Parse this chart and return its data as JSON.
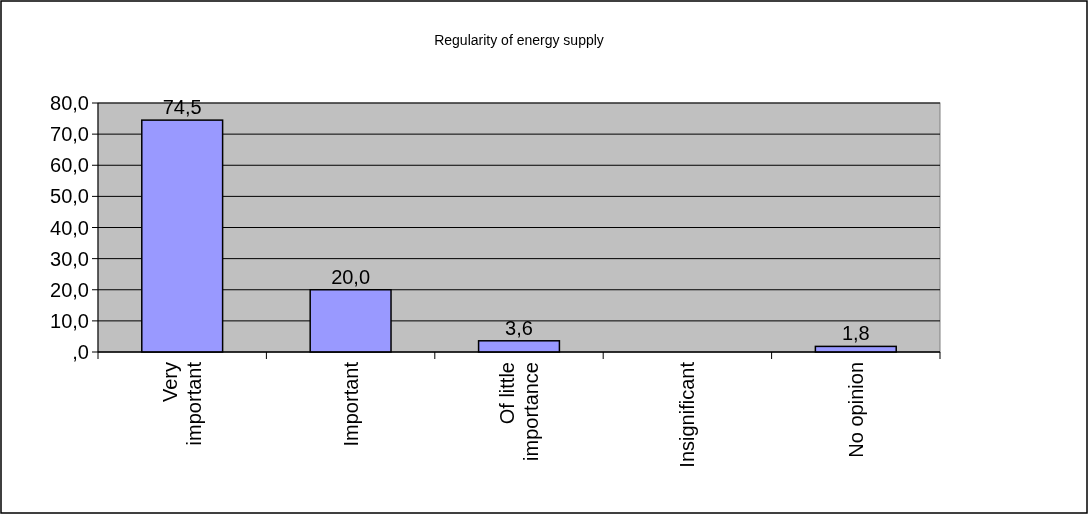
{
  "chart_data": {
    "type": "bar",
    "title": "Regularity of energy supply",
    "categories": [
      "Very important",
      "Important",
      "Of little importance",
      "Insignificant",
      "No opinion"
    ],
    "values": [
      74.5,
      20.0,
      3.6,
      0,
      1.8
    ],
    "value_labels": [
      "74,5",
      "20,0",
      "3,6",
      null,
      "1,8"
    ],
    "color": "#9999ff",
    "ylim": [
      0,
      80
    ],
    "yticks": [
      {
        "value": 0,
        "label": ",0"
      },
      {
        "value": 10,
        "label": "10,0"
      },
      {
        "value": 20,
        "label": "20,0"
      },
      {
        "value": 30,
        "label": "30,0"
      },
      {
        "value": 40,
        "label": "40,0"
      },
      {
        "value": 50,
        "label": "50,0"
      },
      {
        "value": 60,
        "label": "60,0"
      },
      {
        "value": 70,
        "label": "70,0"
      },
      {
        "value": 80,
        "label": "80,0"
      }
    ],
    "grid": "y"
  }
}
